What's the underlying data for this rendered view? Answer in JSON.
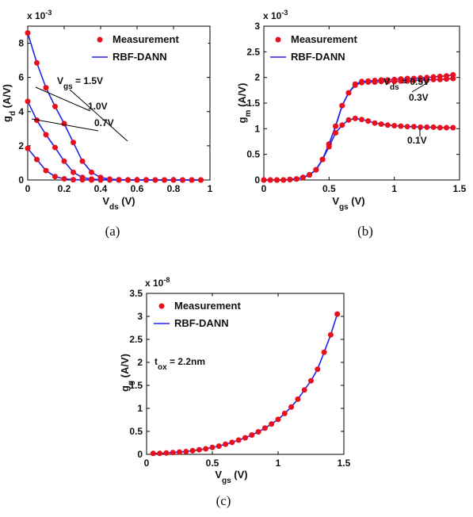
{
  "colors": {
    "measurement": "#e8101c",
    "model": "#2222ee"
  },
  "chart_data": [
    {
      "type": "scatter",
      "caption": "(a)",
      "exponent": "x 10",
      "exponent_power": "-3",
      "ylabel": "g",
      "ylabel_sub": "d",
      "ylabel_unit": " (A/V)",
      "xlabel": "V",
      "xlabel_sub": "ds",
      "xlabel_unit": " (V)",
      "xlim": [
        0,
        1
      ],
      "ylim": [
        0,
        9
      ],
      "xticks": [
        0,
        0.2,
        0.4,
        0.6,
        0.8,
        1
      ],
      "xtick_labels": [
        "0",
        "0.2",
        "0.4",
        "0.6",
        "0.8",
        "1"
      ],
      "yticks": [
        0,
        2,
        4,
        6,
        8
      ],
      "ytick_labels": [
        "0",
        "2",
        "4",
        "6",
        "8"
      ],
      "legend": [
        "Measurement",
        "RBF-DANN"
      ],
      "legend_position": "top-right",
      "annotations": [
        {
          "text_pre": "V",
          "text_sub": "gs",
          "text_post": " = 1.5V"
        },
        {
          "text": "1.0V"
        },
        {
          "text": "0.7V"
        }
      ],
      "series": [
        {
          "x": [
            0,
            0.05,
            0.1,
            0.15,
            0.2,
            0.25,
            0.3,
            0.35,
            0.4,
            0.45,
            0.5,
            0.55,
            0.6,
            0.65,
            0.7,
            0.75,
            0.8,
            0.85,
            0.9,
            0.95
          ],
          "y": [
            8.6,
            6.85,
            5.4,
            4.3,
            3.3,
            2.2,
            1.1,
            0.45,
            0.15,
            0.05,
            0.02,
            0.01,
            0.01,
            0.01,
            0,
            0,
            0,
            0,
            0,
            0
          ]
        },
        {
          "x": [
            0,
            0.05,
            0.1,
            0.15,
            0.2,
            0.25,
            0.3,
            0.35,
            0.4,
            0.45,
            0.5,
            0.55,
            0.6,
            0.65,
            0.7,
            0.75,
            0.8,
            0.85,
            0.9,
            0.95
          ],
          "y": [
            4.6,
            3.5,
            2.65,
            1.9,
            1.1,
            0.45,
            0.15,
            0.05,
            0.02,
            0.01,
            0,
            0,
            0,
            0,
            0,
            0,
            0,
            0,
            0,
            0
          ]
        },
        {
          "x": [
            0,
            0.05,
            0.1,
            0.15,
            0.2,
            0.25,
            0.3,
            0.35,
            0.4,
            0.45,
            0.5,
            0.55,
            0.6,
            0.65,
            0.7,
            0.75,
            0.8,
            0.85,
            0.9,
            0.95
          ],
          "y": [
            1.85,
            1.2,
            0.55,
            0.2,
            0.07,
            0.02,
            0.01,
            0,
            0,
            0,
            0,
            0,
            0,
            0,
            0,
            0,
            0,
            0,
            0,
            0
          ]
        }
      ]
    },
    {
      "type": "scatter",
      "caption": "(b)",
      "exponent": "x 10",
      "exponent_power": "-3",
      "ylabel": "g",
      "ylabel_sub": "m",
      "ylabel_unit": " (A/V)",
      "xlabel": "V",
      "xlabel_sub": "gs",
      "xlabel_unit": " (V)",
      "xlim": [
        0,
        1.5
      ],
      "ylim": [
        0,
        3
      ],
      "xticks": [
        0,
        0.5,
        1,
        1.5
      ],
      "xtick_labels": [
        "0",
        "0.5",
        "1",
        "1.5"
      ],
      "yticks": [
        0,
        0.5,
        1,
        1.5,
        2,
        2.5,
        3
      ],
      "ytick_labels": [
        "0",
        "0.5",
        "1",
        "1.5",
        "2",
        "2.5",
        "3"
      ],
      "legend": [
        "Measurement",
        "RBF-DANN"
      ],
      "legend_position": "top-right",
      "annotations": [
        {
          "text_pre": "V",
          "text_sub": "ds",
          "text_post": " = 0.5V"
        },
        {
          "text": "0.3V"
        },
        {
          "text": "0.1V"
        }
      ],
      "series": [
        {
          "x": [
            0,
            0.05,
            0.1,
            0.15,
            0.2,
            0.25,
            0.3,
            0.35,
            0.4,
            0.45,
            0.5,
            0.55,
            0.6,
            0.65,
            0.7,
            0.75,
            0.8,
            0.85,
            0.9,
            0.95,
            1,
            1.05,
            1.1,
            1.15,
            1.2,
            1.25,
            1.3,
            1.35,
            1.4,
            1.45
          ],
          "y": [
            0,
            0,
            0,
            0,
            0.01,
            0.02,
            0.05,
            0.1,
            0.2,
            0.4,
            0.7,
            1.05,
            1.45,
            1.7,
            1.87,
            1.92,
            1.93,
            1.94,
            1.95,
            1.95,
            1.96,
            1.97,
            1.98,
            1.98,
            1.99,
            2.0,
            2.01,
            2.02,
            2.03,
            2.05
          ]
        },
        {
          "x": [
            0,
            0.05,
            0.1,
            0.15,
            0.2,
            0.25,
            0.3,
            0.35,
            0.4,
            0.45,
            0.5,
            0.55,
            0.6,
            0.65,
            0.7,
            0.75,
            0.8,
            0.85,
            0.9,
            0.95,
            1,
            1.05,
            1.1,
            1.15,
            1.2,
            1.25,
            1.3,
            1.35,
            1.4,
            1.45
          ],
          "y": [
            0,
            0,
            0,
            0,
            0.01,
            0.02,
            0.05,
            0.1,
            0.2,
            0.4,
            0.7,
            1.05,
            1.45,
            1.7,
            1.85,
            1.9,
            1.91,
            1.91,
            1.92,
            1.92,
            1.92,
            1.93,
            1.93,
            1.94,
            1.95,
            1.95,
            1.96,
            1.96,
            1.97,
            1.98
          ]
        },
        {
          "x": [
            0,
            0.05,
            0.1,
            0.15,
            0.2,
            0.25,
            0.3,
            0.35,
            0.4,
            0.45,
            0.5,
            0.55,
            0.6,
            0.65,
            0.7,
            0.75,
            0.8,
            0.85,
            0.9,
            0.95,
            1,
            1.05,
            1.1,
            1.15,
            1.2,
            1.25,
            1.3,
            1.35,
            1.4,
            1.45
          ],
          "y": [
            0,
            0,
            0,
            0,
            0.01,
            0.02,
            0.05,
            0.1,
            0.2,
            0.4,
            0.65,
            0.92,
            1.07,
            1.17,
            1.2,
            1.18,
            1.15,
            1.11,
            1.09,
            1.07,
            1.06,
            1.05,
            1.04,
            1.04,
            1.03,
            1.03,
            1.03,
            1.02,
            1.02,
            1.02
          ]
        }
      ]
    },
    {
      "type": "scatter",
      "caption": "(c)",
      "exponent": "x 10",
      "exponent_power": "-8",
      "ylabel": "g",
      "ylabel_sub": "g",
      "ylabel_unit": " (A/V)",
      "xlabel": "V",
      "xlabel_sub": "gs",
      "xlabel_unit": " (V)",
      "xlim": [
        0,
        1.5
      ],
      "ylim": [
        0,
        3.5
      ],
      "xticks": [
        0,
        0.5,
        1,
        1.5
      ],
      "xtick_labels": [
        "0",
        "0.5",
        "1",
        "1.5"
      ],
      "yticks": [
        0,
        0.5,
        1,
        1.5,
        2,
        2.5,
        3,
        3.5
      ],
      "ytick_labels": [
        "0",
        "0.5",
        "1",
        "1.5",
        "2",
        "2.5",
        "3",
        "3.5"
      ],
      "legend": [
        "Measurement",
        "RBF-DANN"
      ],
      "legend_position": "top-left",
      "annotations": [
        {
          "text_pre": "t",
          "text_sub": "ox",
          "text_post": " = 2.2nm"
        }
      ],
      "series": [
        {
          "x": [
            0.05,
            0.1,
            0.15,
            0.2,
            0.25,
            0.3,
            0.35,
            0.4,
            0.45,
            0.5,
            0.55,
            0.6,
            0.65,
            0.7,
            0.75,
            0.8,
            0.85,
            0.9,
            0.95,
            1,
            1.05,
            1.1,
            1.15,
            1.2,
            1.25,
            1.3,
            1.35,
            1.4,
            1.45
          ],
          "y": [
            0.02,
            0.02,
            0.03,
            0.04,
            0.05,
            0.06,
            0.08,
            0.1,
            0.12,
            0.15,
            0.18,
            0.22,
            0.26,
            0.31,
            0.36,
            0.42,
            0.49,
            0.57,
            0.66,
            0.76,
            0.89,
            1.03,
            1.2,
            1.4,
            1.6,
            1.85,
            2.22,
            2.6,
            3.05
          ]
        }
      ]
    }
  ]
}
